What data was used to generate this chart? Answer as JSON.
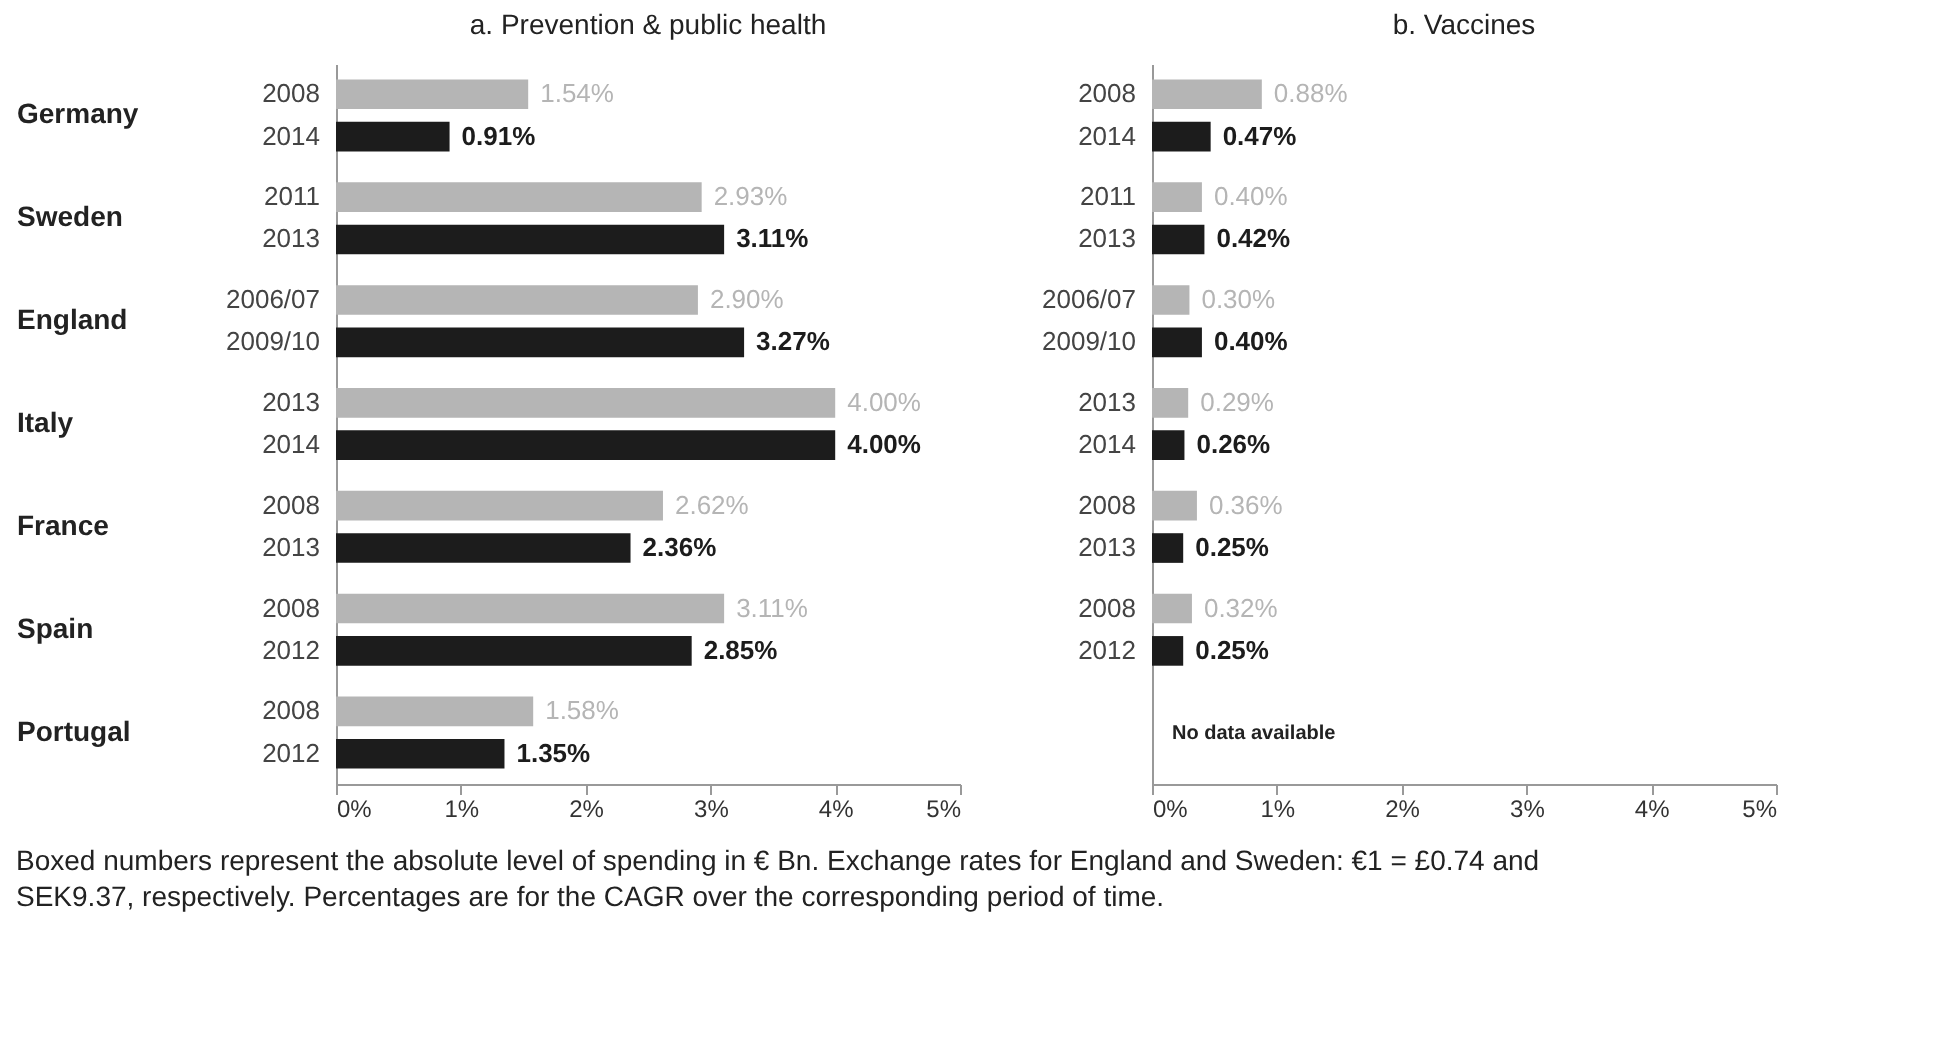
{
  "chart_data": [
    {
      "type": "bar",
      "orientation": "horizontal",
      "title": "a. Prevention & public health",
      "categories": [
        "Germany",
        "Sweden",
        "England",
        "Italy",
        "France",
        "Spain",
        "Portugal"
      ],
      "series": [
        {
          "color": "#b5b5b5",
          "values": [
            1.54,
            2.93,
            2.9,
            4.0,
            2.62,
            3.11,
            1.58
          ],
          "value_labels": [
            "1.54%",
            "2.93%",
            "2.90%",
            "4.00%",
            "2.62%",
            "3.11%",
            "1.58%"
          ]
        },
        {
          "color": "#1c1c1c",
          "values": [
            0.91,
            3.11,
            3.27,
            4.0,
            2.36,
            2.85,
            1.35
          ],
          "value_labels": [
            "0.91%",
            "3.11%",
            "3.27%",
            "4.00%",
            "2.36%",
            "2.85%",
            "1.35%"
          ]
        }
      ],
      "xlim": [
        0,
        5
      ],
      "xticks": [
        {
          "value": 0,
          "label": "0%"
        },
        {
          "value": 1,
          "label": "1%"
        },
        {
          "value": 2,
          "label": "2%"
        },
        {
          "value": 3,
          "label": "3%"
        },
        {
          "value": 4,
          "label": "4%"
        },
        {
          "value": 5,
          "label": "5%"
        }
      ],
      "annotations": [
        "2008",
        "2014",
        "2011",
        "2013",
        "2006/07",
        "2009/10",
        "2013",
        "2014",
        "2008",
        "2013",
        "2008",
        "2012",
        "2008",
        "2012",
        "Boxed numbers represent the absolute level of spending in € Bn. Exchange rates for England and Sweden: €1 = £0.74 and SEK9.37, respectively. Percentages are for the CAGR over the corresponding period of time."
      ]
    },
    {
      "type": "bar",
      "orientation": "horizontal",
      "title": "b. Vaccines",
      "tick_labels": "x",
      "categories": [
        null,
        null,
        null,
        null,
        null,
        null,
        null
      ],
      "series": [
        {
          "color": "#b5b5b5",
          "values": [
            0.88,
            0.4,
            0.3,
            0.29,
            0.36,
            0.32,
            null
          ],
          "value_labels": [
            "0.88%",
            "0.40%",
            "0.30%",
            "0.29%",
            "0.36%",
            "0.32%",
            null
          ]
        },
        {
          "color": "#1c1c1c",
          "values": [
            0.47,
            0.42,
            0.4,
            0.26,
            0.25,
            0.25,
            null
          ],
          "value_labels": [
            "0.47%",
            "0.42%",
            "0.40%",
            "0.26%",
            "0.25%",
            "0.25%",
            null
          ]
        }
      ],
      "xlim": [
        0,
        5
      ],
      "xticks": [
        {
          "value": 0,
          "label": "0%"
        },
        {
          "value": 1,
          "label": "1%"
        },
        {
          "value": 2,
          "label": "2%"
        },
        {
          "value": 3,
          "label": "3%"
        },
        {
          "value": 4,
          "label": "4%"
        },
        {
          "value": 5,
          "label": "5%"
        }
      ],
      "annotations": [
        "2008",
        "2014",
        "2011",
        "2013",
        "2006/07",
        "2009/10",
        "2013",
        "2014",
        "2008",
        "2013",
        "2008",
        "2012",
        "No data available"
      ]
    }
  ]
}
